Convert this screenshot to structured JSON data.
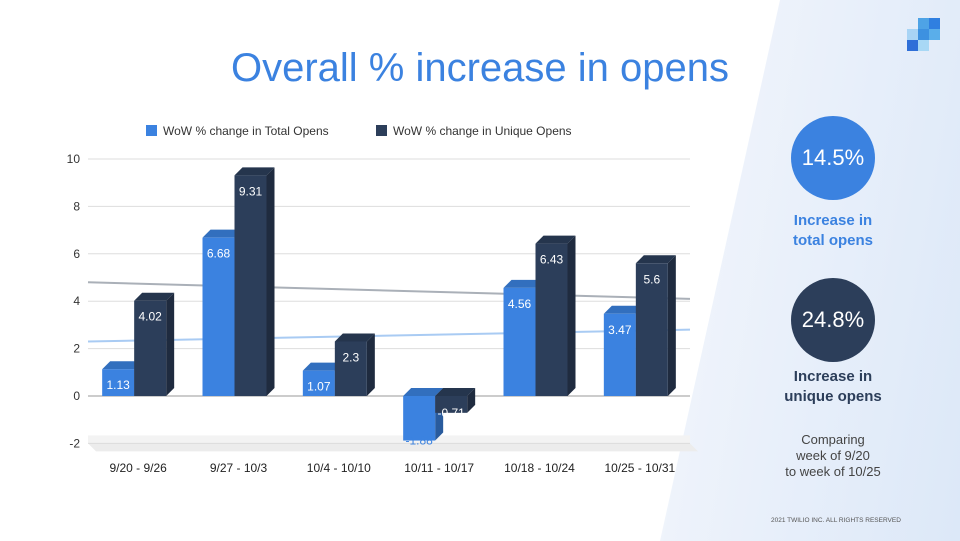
{
  "title": "Overall % increase in opens",
  "stats": [
    {
      "value": "14.5%",
      "label_line1": "Increase in",
      "label_line2": "total opens",
      "color": "#3b82e0"
    },
    {
      "value": "24.8%",
      "label_line1": "Increase in",
      "label_line2": "unique opens",
      "color": "#2c3e5a"
    }
  ],
  "note": {
    "line1": "Comparing",
    "line2": "week of 9/20",
    "line3": "to week of 10/25"
  },
  "copyright": "2021 TWILIO INC. ALL RIGHTS RESERVED",
  "chart_data": {
    "type": "bar",
    "categories": [
      "9/20 - 9/26",
      "9/27 - 10/3",
      "10/4 - 10/10",
      "10/11 - 10/17",
      "10/18 - 10/24",
      "10/25 - 10/31"
    ],
    "series": [
      {
        "name": "WoW % change in Total Opens",
        "color": "#3b82e0",
        "values": [
          1.13,
          6.68,
          1.07,
          -1.88,
          4.56,
          3.47
        ],
        "labels": [
          "1.13",
          "6.68",
          "1.07",
          "-1.88",
          "4.56",
          "3.47"
        ]
      },
      {
        "name": "WoW % change in Unique Opens",
        "color": "#2c3e5a",
        "values": [
          4.02,
          9.31,
          2.3,
          -0.71,
          6.43,
          5.6
        ],
        "labels": [
          "4.02",
          "9.31",
          "2.3",
          "-0.71",
          "6.43",
          "5.6"
        ]
      }
    ],
    "trendlines": [
      {
        "series": "WoW % change in Total Opens",
        "color": "#a9cbf3",
        "start": 2.3,
        "end": 2.8
      },
      {
        "series": "WoW % change in Unique Opens",
        "color": "#aab0b8",
        "start": 4.8,
        "end": 4.1
      }
    ],
    "yticks": [
      -2,
      0,
      2,
      4,
      6,
      8,
      10
    ],
    "ylim": [
      -2,
      10
    ],
    "grid": true,
    "legend": "top"
  }
}
